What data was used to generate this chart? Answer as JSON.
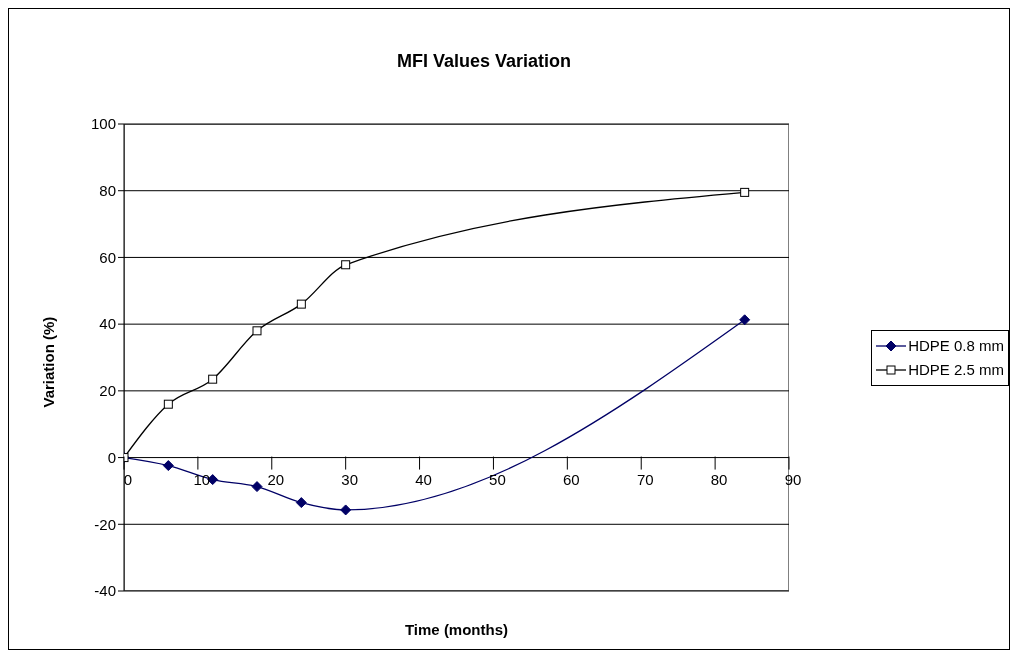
{
  "chart_data": {
    "type": "line",
    "title": "MFI Values Variation",
    "xlabel": "Time (months)",
    "ylabel": "Variation (%)",
    "x": [
      0,
      6,
      12,
      18,
      24,
      30,
      84
    ],
    "series": [
      {
        "name": "HDPE 0.8 mm",
        "color": "#000066",
        "marker": "diamond",
        "values": [
          0,
          -2.4,
          -6.6,
          -8.7,
          -13.5,
          -15.7,
          41.3
        ]
      },
      {
        "name": "HDPE 2.5 mm",
        "color": "#000000",
        "marker": "square",
        "values": [
          0,
          16,
          23.5,
          38,
          46,
          57.8,
          79.5
        ]
      }
    ],
    "xlim": [
      0,
      90
    ],
    "xticks": [
      0,
      10,
      20,
      30,
      40,
      50,
      60,
      70,
      80,
      90
    ],
    "ylim": [
      -40,
      100
    ],
    "yticks": [
      -40,
      -20,
      0,
      20,
      40,
      60,
      80,
      100
    ],
    "grid": "y",
    "legend": "right",
    "line_style": "solid"
  }
}
